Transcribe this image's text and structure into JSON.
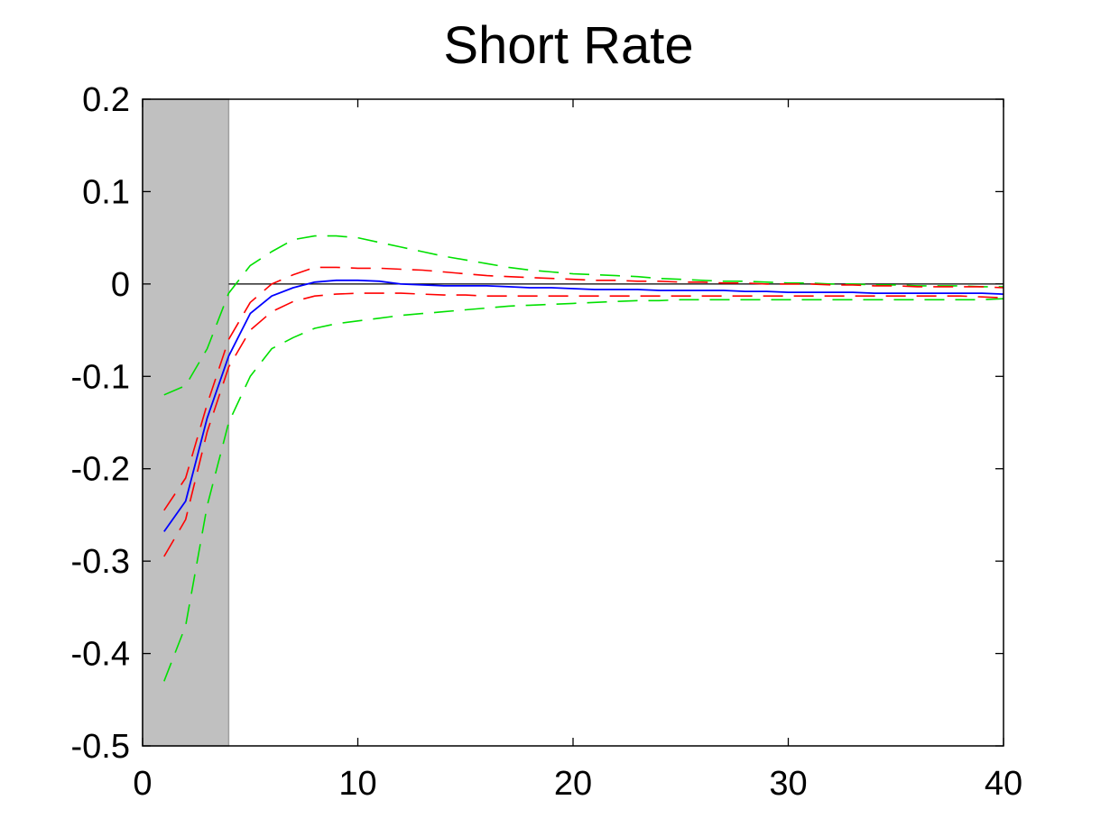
{
  "chart_data": {
    "type": "line",
    "title": "Short Rate",
    "xlabel": "",
    "ylabel": "",
    "xlim": [
      0,
      40
    ],
    "ylim": [
      -0.5,
      0.2
    ],
    "xticks": [
      0,
      10,
      20,
      30,
      40
    ],
    "xtick_labels": [
      "0",
      "10",
      "20",
      "30",
      "40"
    ],
    "yticks": [
      0.2,
      0.1,
      0,
      -0.1,
      -0.2,
      -0.3,
      -0.4,
      -0.5
    ],
    "ytick_labels": [
      "0.2",
      "0.1",
      "0",
      "-0.1",
      "-0.2",
      "-0.3",
      "-0.4",
      "-0.5"
    ],
    "grid": false,
    "legend": false,
    "shaded_region": {
      "x_from": 0,
      "x_to": 4,
      "color": "#c0c0c0"
    },
    "zero_line": {
      "y": 0,
      "x_from": 4,
      "x_to": 40,
      "color": "#000000"
    },
    "x": [
      1,
      2,
      3,
      4,
      5,
      6,
      7,
      8,
      9,
      10,
      11,
      12,
      13,
      14,
      15,
      16,
      17,
      18,
      19,
      20,
      21,
      22,
      23,
      24,
      25,
      26,
      27,
      28,
      29,
      30,
      31,
      32,
      33,
      34,
      35,
      36,
      37,
      38,
      39,
      40
    ],
    "series": [
      {
        "role": "median",
        "color": "#0000ff",
        "dash": "solid",
        "values": [
          -0.268,
          -0.235,
          -0.145,
          -0.078,
          -0.032,
          -0.013,
          -0.004,
          0.002,
          0.004,
          0.004,
          0.003,
          0.0,
          -0.001,
          -0.002,
          -0.002,
          -0.002,
          -0.003,
          -0.004,
          -0.004,
          -0.005,
          -0.006,
          -0.006,
          -0.006,
          -0.007,
          -0.007,
          -0.007,
          -0.007,
          -0.008,
          -0.008,
          -0.009,
          -0.009,
          -0.009,
          -0.009,
          -0.01,
          -0.01,
          -0.01,
          -0.01,
          -0.01,
          -0.01,
          -0.011
        ]
      },
      {
        "role": "inner-upper",
        "color": "#ff0000",
        "dash": "dashed",
        "values": [
          -0.245,
          -0.21,
          -0.13,
          -0.06,
          -0.02,
          0.0,
          0.01,
          0.018,
          0.018,
          0.017,
          0.017,
          0.016,
          0.015,
          0.013,
          0.011,
          0.009,
          0.008,
          0.007,
          0.006,
          0.005,
          0.004,
          0.004,
          0.003,
          0.003,
          0.002,
          0.002,
          0.001,
          0.001,
          0.0,
          0.0,
          0.0,
          -0.001,
          -0.001,
          -0.002,
          -0.002,
          -0.003,
          -0.003,
          -0.003,
          -0.003,
          -0.004
        ]
      },
      {
        "role": "inner-lower",
        "color": "#ff0000",
        "dash": "dashed",
        "values": [
          -0.295,
          -0.255,
          -0.16,
          -0.09,
          -0.05,
          -0.03,
          -0.019,
          -0.013,
          -0.011,
          -0.01,
          -0.01,
          -0.01,
          -0.011,
          -0.012,
          -0.012,
          -0.013,
          -0.013,
          -0.013,
          -0.013,
          -0.013,
          -0.013,
          -0.013,
          -0.013,
          -0.013,
          -0.013,
          -0.013,
          -0.013,
          -0.013,
          -0.013,
          -0.013,
          -0.013,
          -0.013,
          -0.013,
          -0.013,
          -0.013,
          -0.013,
          -0.013,
          -0.013,
          -0.014,
          -0.015
        ]
      },
      {
        "role": "outer-upper",
        "color": "#00e000",
        "dash": "dashed",
        "values": [
          -0.12,
          -0.11,
          -0.07,
          -0.01,
          0.02,
          0.035,
          0.048,
          0.052,
          0.052,
          0.05,
          0.045,
          0.04,
          0.035,
          0.03,
          0.026,
          0.022,
          0.018,
          0.015,
          0.013,
          0.011,
          0.01,
          0.009,
          0.008,
          0.006,
          0.005,
          0.004,
          0.003,
          0.003,
          0.002,
          0.001,
          0.001,
          0.0,
          0.0,
          -0.001,
          -0.001,
          -0.002,
          -0.002,
          -0.002,
          -0.003,
          -0.003
        ]
      },
      {
        "role": "outer-lower",
        "color": "#00e000",
        "dash": "dashed",
        "values": [
          -0.43,
          -0.37,
          -0.24,
          -0.15,
          -0.1,
          -0.07,
          -0.058,
          -0.048,
          -0.043,
          -0.04,
          -0.037,
          -0.034,
          -0.032,
          -0.03,
          -0.028,
          -0.026,
          -0.024,
          -0.023,
          -0.022,
          -0.021,
          -0.02,
          -0.019,
          -0.018,
          -0.018,
          -0.017,
          -0.017,
          -0.017,
          -0.017,
          -0.017,
          -0.017,
          -0.017,
          -0.017,
          -0.017,
          -0.017,
          -0.017,
          -0.017,
          -0.017,
          -0.017,
          -0.017,
          -0.016
        ]
      }
    ]
  }
}
